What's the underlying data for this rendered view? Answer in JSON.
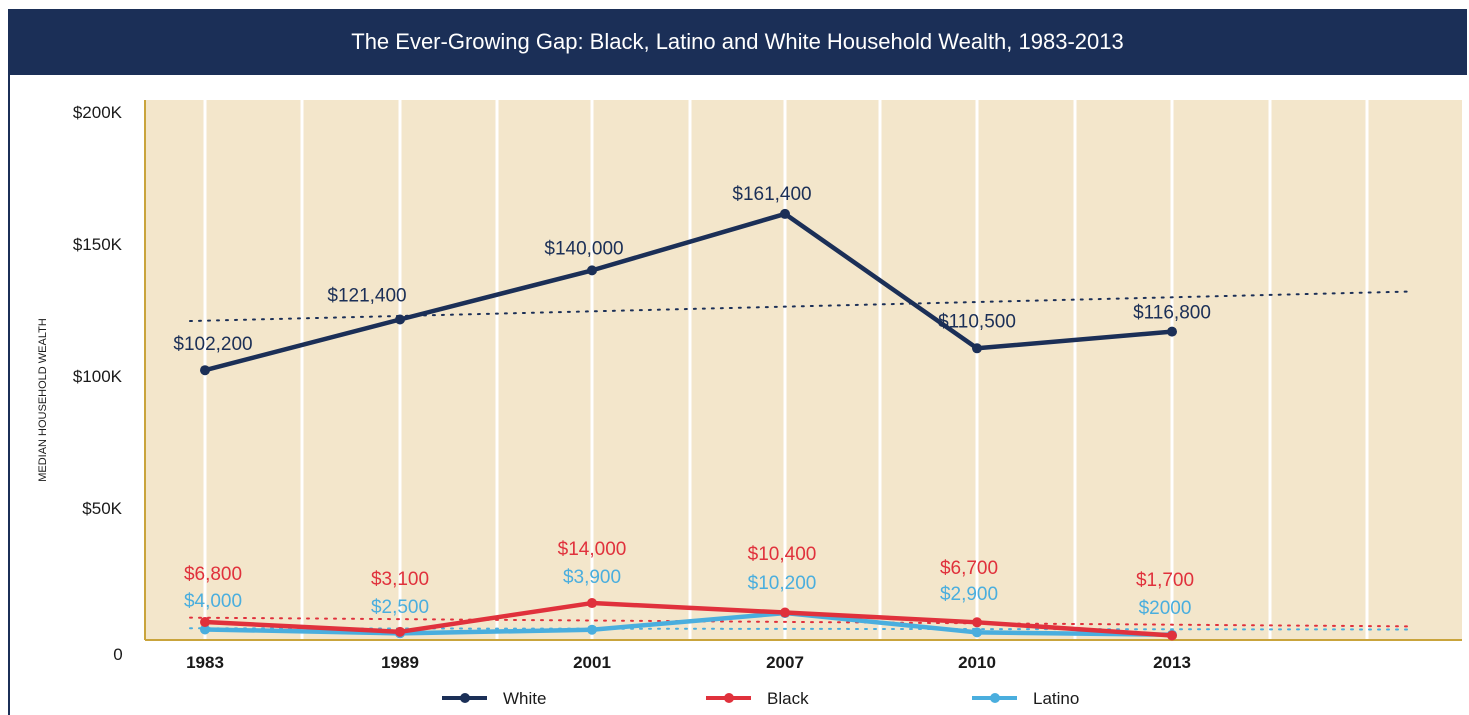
{
  "title": "The Ever-Growing Gap: Black, Latino and White Household Wealth, 1983-2013",
  "chart_data": {
    "type": "line",
    "title": "The Ever-Growing Gap: Black, Latino and White Household Wealth, 1983-2013",
    "xlabel": "",
    "ylabel": "MEDIAN HOUSEHOLD WEALTH",
    "categories": [
      "1983",
      "1989",
      "2001",
      "2007",
      "2010",
      "2013"
    ],
    "ylim": [
      0,
      200000
    ],
    "y_ticks": [
      {
        "value": 0,
        "label": "0"
      },
      {
        "value": 50000,
        "label": "$50K"
      },
      {
        "value": 100000,
        "label": "$100K"
      },
      {
        "value": 150000,
        "label": "$150K"
      },
      {
        "value": 200000,
        "label": "$200K"
      }
    ],
    "grid": true,
    "trendlines": true,
    "legend_position": "bottom",
    "background_color": "#f3e6cb",
    "series": [
      {
        "name": "White",
        "color": "#1b2f57",
        "values": [
          102200,
          121400,
          140000,
          161400,
          110500,
          116800
        ],
        "labels": [
          "$102,200",
          "$121,400",
          "$140,000",
          "$161,400",
          "$110,500",
          "$116,800"
        ]
      },
      {
        "name": "Black",
        "color": "#e0313c",
        "values": [
          6800,
          3100,
          14000,
          10400,
          6700,
          1700
        ],
        "labels": [
          "$6,800",
          "$3,100",
          "$14,000",
          "$10,400",
          "$6,700",
          "$1,700"
        ]
      },
      {
        "name": "Latino",
        "color": "#4aaede",
        "values": [
          4000,
          2500,
          3900,
          10200,
          2900,
          2000
        ],
        "labels": [
          "$4,000",
          "$2,500",
          "$3,900",
          "$10,200",
          "$2,900",
          "$2000"
        ]
      }
    ]
  }
}
